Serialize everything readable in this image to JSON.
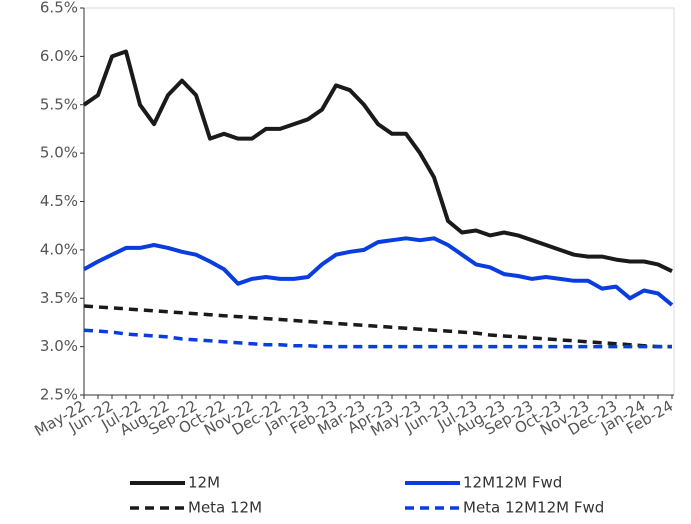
{
  "chart_data": {
    "type": "line",
    "categories": [
      "May-22",
      null,
      "Jun-22",
      null,
      "Jul-22",
      null,
      "Aug-22",
      null,
      "Sep-22",
      null,
      "Oct-22",
      null,
      "Nov-22",
      null,
      "Dec-22",
      null,
      "Jan-23",
      null,
      "Feb-23",
      null,
      "Mar-23",
      null,
      "Apr-23",
      null,
      "May-23",
      null,
      "Jun-23",
      null,
      "Jul-23",
      null,
      "Aug-23",
      null,
      "Sep-23",
      null,
      "Oct-23",
      null,
      "Nov-23",
      null,
      "Dec-23",
      null,
      "Jan-24",
      null,
      "Feb-24"
    ],
    "series": [
      {
        "name": "12M",
        "color": "#1a1a1a",
        "line_style": "solid",
        "values": [
          5.5,
          5.6,
          6.0,
          6.05,
          5.5,
          5.3,
          5.6,
          5.75,
          5.6,
          5.15,
          5.2,
          5.15,
          5.15,
          5.25,
          5.25,
          5.3,
          5.35,
          5.45,
          5.7,
          5.65,
          5.5,
          5.3,
          5.2,
          5.2,
          5.0,
          4.75,
          4.3,
          4.18,
          4.2,
          4.15,
          4.18,
          4.15,
          4.1,
          4.05,
          4.0,
          3.95,
          3.93,
          3.93,
          3.9,
          3.88,
          3.88,
          3.85,
          3.78
        ]
      },
      {
        "name": "12M12M Fwd",
        "color": "#0a3de0",
        "line_style": "solid",
        "values": [
          3.8,
          3.88,
          3.95,
          4.02,
          4.02,
          4.05,
          4.02,
          3.98,
          3.95,
          3.88,
          3.8,
          3.65,
          3.7,
          3.72,
          3.7,
          3.7,
          3.72,
          3.85,
          3.95,
          3.98,
          4.0,
          4.08,
          4.1,
          4.12,
          4.1,
          4.12,
          4.05,
          3.95,
          3.85,
          3.82,
          3.75,
          3.73,
          3.7,
          3.72,
          3.7,
          3.68,
          3.68,
          3.6,
          3.62,
          3.5,
          3.58,
          3.55,
          3.43
        ]
      },
      {
        "name": "Meta 12M",
        "color": "#1a1a1a",
        "line_style": "dashed",
        "values": [
          3.42,
          3.41,
          3.4,
          3.39,
          3.38,
          3.37,
          3.36,
          3.35,
          3.34,
          3.33,
          3.32,
          3.31,
          3.3,
          3.29,
          3.28,
          3.27,
          3.26,
          3.25,
          3.24,
          3.23,
          3.22,
          3.21,
          3.2,
          3.19,
          3.18,
          3.17,
          3.16,
          3.15,
          3.14,
          3.12,
          3.11,
          3.1,
          3.09,
          3.08,
          3.07,
          3.06,
          3.05,
          3.04,
          3.03,
          3.02,
          3.01,
          3,
          3
        ]
      },
      {
        "name": "Meta 12M12M Fwd",
        "color": "#0a3de0",
        "line_style": "dashed",
        "values": [
          3.17,
          3.16,
          3.15,
          3.13,
          3.12,
          3.11,
          3.1,
          3.08,
          3.07,
          3.06,
          3.05,
          3.04,
          3.03,
          3.02,
          3.02,
          3.01,
          3.01,
          3,
          3,
          3,
          3,
          3,
          3,
          3,
          3,
          3,
          3,
          3,
          3,
          3,
          3,
          3,
          3,
          3,
          3,
          3,
          3,
          3,
          3,
          3,
          3,
          3,
          3
        ]
      }
    ],
    "ylim": [
      2.5,
      6.5
    ],
    "yticks": [
      {
        "value": 2.5,
        "label": "2.5%"
      },
      {
        "value": 3,
        "label": "3.0%"
      },
      {
        "value": 3.5,
        "label": "3.5%"
      },
      {
        "value": 4,
        "label": "4.0%"
      },
      {
        "value": 4.5,
        "label": "4.5%"
      },
      {
        "value": 5,
        "label": "5.0%"
      },
      {
        "value": 5.5,
        "label": "5.5%"
      },
      {
        "value": 6,
        "label": "6.0%"
      },
      {
        "value": 6.5,
        "label": "6.5%"
      }
    ],
    "legend": "bottom"
  }
}
